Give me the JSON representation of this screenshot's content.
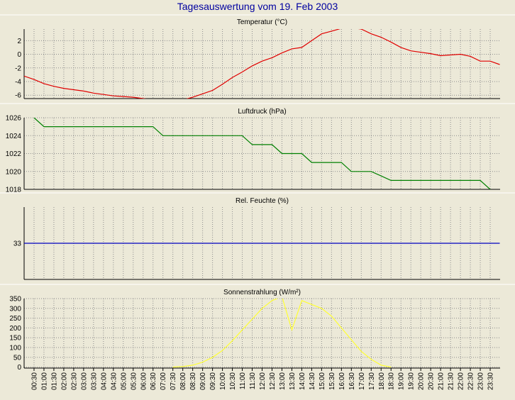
{
  "page_title": "Tagesauswertung vom 19. Feb 2003",
  "colors": {
    "background": "#ece9d8",
    "title": "#0000a0",
    "panel_bg": "#ece9d8",
    "grid": "#8c8c8c",
    "frame": "#000000",
    "temperature": "#e00000",
    "pressure": "#008000",
    "humidity": "#0000c0",
    "radiation": "#ffff33"
  },
  "time_labels": [
    "00:30",
    "01:00",
    "01:30",
    "02:00",
    "02:30",
    "03:00",
    "03:30",
    "04:00",
    "04:30",
    "05:00",
    "05:30",
    "06:00",
    "06:30",
    "07:00",
    "07:30",
    "08:00",
    "08:30",
    "09:00",
    "09:30",
    "10:00",
    "10:30",
    "11:00",
    "11:30",
    "12:00",
    "12:30",
    "13:00",
    "13:30",
    "14:00",
    "14:30",
    "15:00",
    "15:30",
    "16:00",
    "16:30",
    "17:00",
    "17:30",
    "18:00",
    "18:30",
    "19:00",
    "19:30",
    "20:00",
    "20:30",
    "21:00",
    "21:30",
    "22:00",
    "22:30",
    "23:00",
    "23:30"
  ],
  "chart_data": [
    {
      "type": "line",
      "title": "Temperatur (°C)",
      "ylim": [
        -6.5,
        3.7
      ],
      "yticks": [
        2,
        0,
        -2,
        -4,
        -6
      ],
      "grid": true,
      "color": "#e00000",
      "x": [
        "00:00",
        "00:30",
        "01:00",
        "01:30",
        "02:00",
        "02:30",
        "03:00",
        "03:30",
        "04:00",
        "04:30",
        "05:00",
        "05:30",
        "06:00",
        "06:30",
        "07:00",
        "07:30",
        "08:00",
        "08:30",
        "09:00",
        "09:30",
        "10:00",
        "10:30",
        "11:00",
        "11:30",
        "12:00",
        "12:30",
        "13:00",
        "13:30",
        "14:00",
        "14:30",
        "15:00",
        "15:30",
        "16:00",
        "16:30",
        "17:00",
        "17:30",
        "18:00",
        "18:30",
        "19:00",
        "19:30",
        "20:00",
        "20:30",
        "21:00",
        "21:30",
        "22:00",
        "22:30",
        "23:00",
        "23:30",
        "23:59"
      ],
      "values": [
        -3.2,
        -3.7,
        -4.3,
        -4.7,
        -5.0,
        -5.2,
        -5.4,
        -5.7,
        -5.9,
        -6.1,
        -6.2,
        -6.3,
        -6.5,
        -6.7,
        -6.8,
        -6.9,
        -6.7,
        -6.3,
        -5.8,
        -5.3,
        -4.4,
        -3.4,
        -2.6,
        -1.7,
        -1.0,
        -0.5,
        0.2,
        0.8,
        1.0,
        2.0,
        3.0,
        3.4,
        3.8,
        3.9,
        3.7,
        3.0,
        2.5,
        1.8,
        1.0,
        0.5,
        0.3,
        0.1,
        -0.2,
        -0.1,
        0.0,
        -0.3,
        -1.0,
        -1.0,
        -1.5
      ]
    },
    {
      "type": "line",
      "title": "Luftdruck (hPa)",
      "ylim": [
        1018,
        1026
      ],
      "yticks": [
        1026,
        1024,
        1022,
        1020,
        1018
      ],
      "grid": true,
      "color": "#008000",
      "x": [
        "00:30",
        "01:00",
        "06:30",
        "07:00",
        "11:00",
        "11:30",
        "12:30",
        "13:00",
        "14:00",
        "14:30",
        "16:00",
        "16:30",
        "17:30",
        "18:00",
        "18:30",
        "19:00",
        "23:00",
        "23:30"
      ],
      "values": [
        1026,
        1025,
        1025,
        1024,
        1024,
        1023,
        1023,
        1022,
        1022,
        1021,
        1021,
        1020,
        1020,
        1019.5,
        1019,
        1019,
        1019,
        1018
      ]
    },
    {
      "type": "line",
      "title": "Rel. Feuchte (%)",
      "ylim": [
        29,
        37
      ],
      "yticks": [
        33
      ],
      "grid": true,
      "color": "#0000c0",
      "x": [
        "00:00",
        "23:59"
      ],
      "values": [
        33,
        33
      ]
    },
    {
      "type": "line",
      "title": "Sonnenstrahlung (W/m²)",
      "ylim": [
        -5,
        350
      ],
      "yticks": [
        350,
        300,
        250,
        200,
        150,
        100,
        50,
        0
      ],
      "grid": true,
      "color": "#ffff33",
      "x": [
        "07:30",
        "08:00",
        "08:30",
        "09:00",
        "09:30",
        "10:00",
        "10:30",
        "11:00",
        "11:30",
        "12:00",
        "12:30",
        "13:00",
        "13:30",
        "14:00",
        "14:30",
        "15:00",
        "15:30",
        "16:00",
        "16:30",
        "17:00",
        "17:30",
        "18:00",
        "18:30"
      ],
      "values": [
        0,
        3,
        10,
        25,
        50,
        85,
        135,
        190,
        245,
        300,
        340,
        360,
        190,
        340,
        320,
        300,
        260,
        200,
        140,
        80,
        40,
        10,
        0
      ]
    }
  ]
}
